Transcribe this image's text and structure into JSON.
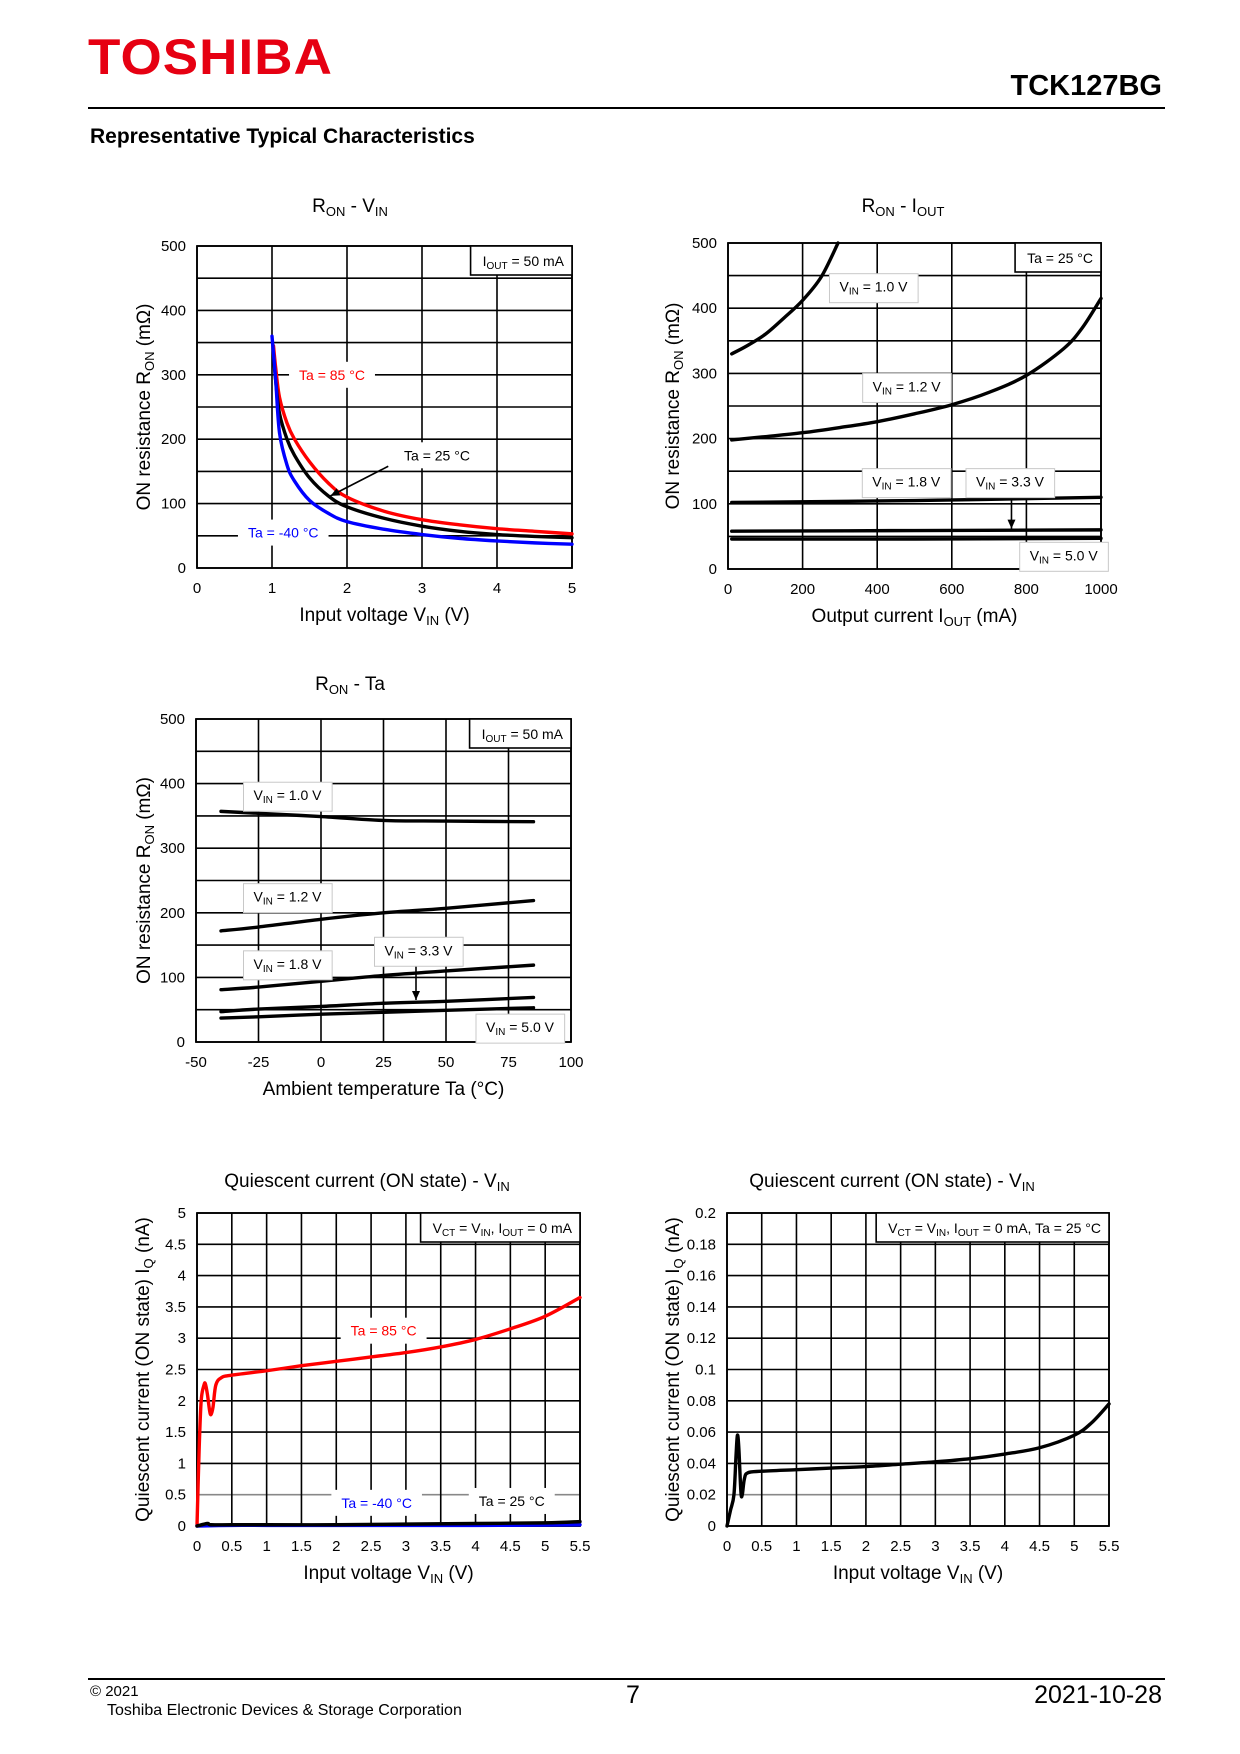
{
  "header": {
    "logo": "TOSHIBA",
    "part_number": "TCK127BG",
    "section_title": "Representative Typical Characteristics"
  },
  "footer": {
    "copyright": "© 2021",
    "company": "Toshiba Electronic Devices & Storage Corporation",
    "page": "7",
    "date": "2021-10-28"
  },
  "colors": {
    "logo": "#e60012",
    "ta85": "#ff0000",
    "ta25": "#000000",
    "ta_minus40": "#0000ff",
    "grid": "#000000"
  },
  "chart_data": [
    {
      "type": "line",
      "title": [
        {
          "t": "R"
        },
        {
          "t": "ON",
          "sub": true
        },
        {
          "t": " - V"
        },
        {
          "t": "IN",
          "sub": true
        }
      ],
      "xlabel": [
        {
          "t": "Input voltage V"
        },
        {
          "t": "IN",
          "sub": true
        },
        {
          "t": " (V)"
        }
      ],
      "ylabel": [
        {
          "t": "ON resistance R"
        },
        {
          "t": "ON",
          "sub": true
        },
        {
          "t": " (mΩ)"
        }
      ],
      "condition": [
        {
          "t": "I"
        },
        {
          "t": "OUT",
          "sub": true
        },
        {
          "t": " = 50 mA"
        }
      ],
      "xlim": [
        0,
        5
      ],
      "ylim": [
        0,
        500
      ],
      "xticks": [
        0,
        1,
        2,
        3,
        4,
        5
      ],
      "yticks": [
        0,
        100,
        200,
        300,
        400,
        500
      ],
      "grid": true,
      "series": [
        {
          "label": [
            {
              "t": "Ta = 85 °C"
            }
          ],
          "color": "#ff0000",
          "x": [
            1.02,
            1.05,
            1.1,
            1.2,
            1.3,
            1.5,
            1.75,
            2,
            2.5,
            3,
            3.5,
            4,
            4.5,
            5
          ],
          "y": [
            345,
            310,
            265,
            225,
            200,
            165,
            132,
            110,
            88,
            75,
            67,
            61,
            57,
            53
          ]
        },
        {
          "label": [
            {
              "t": "Ta = 25 °C"
            }
          ],
          "color": "#000000",
          "x": [
            1.02,
            1.05,
            1.1,
            1.2,
            1.3,
            1.5,
            1.75,
            2,
            2.5,
            3,
            3.5,
            4,
            4.5,
            5
          ],
          "y": [
            330,
            290,
            240,
            200,
            175,
            140,
            112,
            95,
            77,
            65,
            57,
            52,
            49,
            47
          ]
        },
        {
          "label": [
            {
              "t": "Ta = -40 °C"
            }
          ],
          "color": "#0000ff",
          "x": [
            1.0,
            1.05,
            1.1,
            1.2,
            1.3,
            1.5,
            1.75,
            2,
            2.5,
            3,
            3.5,
            4,
            4.5,
            5
          ],
          "y": [
            360,
            290,
            210,
            160,
            135,
            105,
            85,
            72,
            60,
            52,
            46,
            42,
            39,
            37
          ]
        }
      ]
    },
    {
      "type": "line",
      "title": [
        {
          "t": "R"
        },
        {
          "t": "ON",
          "sub": true
        },
        {
          "t": " - I"
        },
        {
          "t": "OUT",
          "sub": true
        }
      ],
      "xlabel": [
        {
          "t": "Output current I"
        },
        {
          "t": "OUT",
          "sub": true
        },
        {
          "t": " (mA)"
        }
      ],
      "ylabel": [
        {
          "t": "ON resistance R"
        },
        {
          "t": "ON",
          "sub": true
        },
        {
          "t": " (mΩ)"
        }
      ],
      "condition": [
        {
          "t": "Ta = 25 °C"
        }
      ],
      "xlim": [
        0,
        1000
      ],
      "ylim": [
        0,
        500
      ],
      "xticks": [
        0,
        200,
        400,
        600,
        800,
        1000
      ],
      "yticks": [
        0,
        100,
        200,
        300,
        400,
        500
      ],
      "grid": true,
      "series": [
        {
          "label": [
            {
              "t": "V"
            },
            {
              "t": "IN",
              "sub": true
            },
            {
              "t": " = 1.0 V"
            }
          ],
          "color": "#000000",
          "x": [
            10,
            50,
            100,
            150,
            200,
            250,
            295
          ],
          "y": [
            330,
            342,
            360,
            385,
            412,
            448,
            500
          ]
        },
        {
          "label": [
            {
              "t": "V"
            },
            {
              "t": "IN",
              "sub": true
            },
            {
              "t": " = 1.2 V"
            }
          ],
          "color": "#000000",
          "x": [
            10,
            100,
            200,
            300,
            400,
            500,
            600,
            700,
            800,
            900,
            950,
            1000
          ],
          "y": [
            198,
            203,
            209,
            217,
            226,
            238,
            252,
            271,
            297,
            338,
            370,
            415
          ]
        },
        {
          "label": [
            {
              "t": "V"
            },
            {
              "t": "IN",
              "sub": true
            },
            {
              "t": " = 1.8 V"
            }
          ],
          "color": "#000000",
          "x": [
            10,
            500,
            1000
          ],
          "y": [
            102,
            105,
            110
          ]
        },
        {
          "label": [
            {
              "t": "V"
            },
            {
              "t": "IN",
              "sub": true
            },
            {
              "t": " = 3.3 V"
            }
          ],
          "color": "#000000",
          "x": [
            10,
            500,
            1000
          ],
          "y": [
            58,
            59,
            60
          ]
        },
        {
          "label": [
            {
              "t": "V"
            },
            {
              "t": "IN",
              "sub": true
            },
            {
              "t": " = 5.0 V"
            }
          ],
          "color": "#000000",
          "x": [
            10,
            500,
            1000
          ],
          "y": [
            46,
            46,
            47
          ]
        }
      ]
    },
    {
      "type": "line",
      "title": [
        {
          "t": "R"
        },
        {
          "t": "ON",
          "sub": true
        },
        {
          "t": " - Ta"
        }
      ],
      "xlabel": [
        {
          "t": "Ambient temperature Ta (°C)"
        }
      ],
      "ylabel": [
        {
          "t": "ON resistance R"
        },
        {
          "t": "ON",
          "sub": true
        },
        {
          "t": " (mΩ)"
        }
      ],
      "condition": [
        {
          "t": "I"
        },
        {
          "t": "OUT",
          "sub": true
        },
        {
          "t": " = 50 mA"
        }
      ],
      "xlim": [
        -50,
        100
      ],
      "ylim": [
        0,
        500
      ],
      "xticks": [
        -50,
        -25,
        0,
        25,
        50,
        75,
        100
      ],
      "yticks": [
        0,
        100,
        200,
        300,
        400,
        500
      ],
      "grid": true,
      "series": [
        {
          "label": [
            {
              "t": "V"
            },
            {
              "t": "IN",
              "sub": true
            },
            {
              "t": " = 1.0 V"
            }
          ],
          "color": "#000000",
          "x": [
            -40,
            -25,
            0,
            25,
            50,
            85
          ],
          "y": [
            357,
            354,
            349,
            343,
            342,
            341
          ]
        },
        {
          "label": [
            {
              "t": "V"
            },
            {
              "t": "IN",
              "sub": true
            },
            {
              "t": " = 1.2 V"
            }
          ],
          "color": "#000000",
          "x": [
            -40,
            -25,
            0,
            25,
            50,
            85
          ],
          "y": [
            172,
            178,
            190,
            200,
            207,
            219
          ]
        },
        {
          "label": [
            {
              "t": "V"
            },
            {
              "t": "IN",
              "sub": true
            },
            {
              "t": " = 1.8 V"
            }
          ],
          "color": "#000000",
          "x": [
            -40,
            -25,
            0,
            25,
            50,
            85
          ],
          "y": [
            81,
            85,
            94,
            103,
            110,
            119
          ]
        },
        {
          "label": [
            {
              "t": "V"
            },
            {
              "t": "IN",
              "sub": true
            },
            {
              "t": " = 3.3 V"
            }
          ],
          "color": "#000000",
          "x": [
            -40,
            -25,
            0,
            25,
            50,
            85
          ],
          "y": [
            47,
            51,
            55,
            60,
            63,
            69
          ]
        },
        {
          "label": [
            {
              "t": "V"
            },
            {
              "t": "IN",
              "sub": true
            },
            {
              "t": " = 5.0 V"
            }
          ],
          "color": "#000000",
          "x": [
            -40,
            -25,
            0,
            25,
            50,
            85
          ],
          "y": [
            37,
            39,
            43,
            46,
            49,
            53
          ]
        }
      ]
    },
    {
      "type": "line",
      "title": [
        {
          "t": "Quiescent current (ON state) - V"
        },
        {
          "t": "IN",
          "sub": true
        }
      ],
      "xlabel": [
        {
          "t": "Input voltage V"
        },
        {
          "t": "IN",
          "sub": true
        },
        {
          "t": " (V)"
        }
      ],
      "ylabel": [
        {
          "t": "Quiescent current (ON state) I"
        },
        {
          "t": "Q",
          "sub": true
        },
        {
          "t": " (nA)"
        }
      ],
      "condition": [
        {
          "t": "V"
        },
        {
          "t": "CT",
          "sub": true
        },
        {
          "t": " = V"
        },
        {
          "t": "IN",
          "sub": true
        },
        {
          "t": ", I"
        },
        {
          "t": "OUT",
          "sub": true
        },
        {
          "t": " = 0 mA"
        }
      ],
      "xlim": [
        0,
        5.5
      ],
      "ylim": [
        0,
        5
      ],
      "xticks": [
        0,
        0.5,
        1,
        1.5,
        2,
        2.5,
        3,
        3.5,
        4,
        4.5,
        5,
        5.5
      ],
      "yticks": [
        0,
        0.5,
        1,
        1.5,
        2,
        2.5,
        3,
        3.5,
        4,
        4.5,
        5
      ],
      "grid": true,
      "series": [
        {
          "label": [
            {
              "t": "Ta = 85 °C"
            }
          ],
          "color": "#ff0000",
          "x": [
            0,
            0.03,
            0.06,
            0.1,
            0.12,
            0.15,
            0.18,
            0.2,
            0.23,
            0.27,
            0.35,
            0.5,
            1,
            1.5,
            2,
            2.5,
            3,
            3.5,
            4,
            4.5,
            5,
            5.5
          ],
          "y": [
            0,
            1.2,
            2.0,
            2.25,
            2.27,
            2.1,
            1.85,
            1.78,
            1.9,
            2.25,
            2.37,
            2.41,
            2.48,
            2.56,
            2.63,
            2.7,
            2.77,
            2.86,
            2.98,
            3.15,
            3.35,
            3.65
          ]
        },
        {
          "label": [
            {
              "t": "Ta = -40 °C"
            }
          ],
          "color": "#0000ff",
          "x": [
            0,
            0.5,
            1,
            2,
            3,
            4,
            5,
            5.5
          ],
          "y": [
            0,
            0.01,
            0.01,
            0.01,
            0.01,
            0.01,
            0.015,
            0.02
          ]
        },
        {
          "label": [
            {
              "t": "Ta = 25 °C"
            }
          ],
          "color": "#000000",
          "x": [
            0,
            0.15,
            0.2,
            0.5,
            1,
            2,
            3,
            4,
            5,
            5.5
          ],
          "y": [
            0,
            0.04,
            0.02,
            0.02,
            0.02,
            0.02,
            0.03,
            0.04,
            0.05,
            0.07
          ]
        }
      ]
    },
    {
      "type": "line",
      "title": [
        {
          "t": "Quiescent current (ON state) - V"
        },
        {
          "t": "IN",
          "sub": true
        }
      ],
      "xlabel": [
        {
          "t": "Input voltage V"
        },
        {
          "t": "IN",
          "sub": true
        },
        {
          "t": " (V)"
        }
      ],
      "ylabel": [
        {
          "t": "Quiescent current (ON state) I"
        },
        {
          "t": "Q",
          "sub": true
        },
        {
          "t": " (nA)"
        }
      ],
      "condition": [
        {
          "t": "V"
        },
        {
          "t": "CT",
          "sub": true
        },
        {
          "t": " = V"
        },
        {
          "t": "IN",
          "sub": true
        },
        {
          "t": ", I"
        },
        {
          "t": "OUT",
          "sub": true
        },
        {
          "t": " = 0 mA, Ta = 25 °C"
        }
      ],
      "xlim": [
        0,
        5.5
      ],
      "ylim": [
        0,
        0.2
      ],
      "xticks": [
        0,
        0.5,
        1,
        1.5,
        2,
        2.5,
        3,
        3.5,
        4,
        4.5,
        5,
        5.5
      ],
      "yticks": [
        0,
        0.02,
        0.04,
        0.06,
        0.08,
        0.1,
        0.12,
        0.14,
        0.16,
        0.18,
        0.2
      ],
      "grid": true,
      "series": [
        {
          "color": "#000000",
          "x": [
            0,
            0.05,
            0.1,
            0.13,
            0.15,
            0.17,
            0.2,
            0.22,
            0.25,
            0.3,
            0.5,
            1,
            1.5,
            2,
            2.5,
            3,
            3.5,
            4,
            4.5,
            5,
            5.25,
            5.5
          ],
          "y": [
            0,
            0.01,
            0.02,
            0.045,
            0.058,
            0.05,
            0.022,
            0.02,
            0.03,
            0.034,
            0.035,
            0.036,
            0.037,
            0.038,
            0.0395,
            0.041,
            0.043,
            0.046,
            0.05,
            0.058,
            0.066,
            0.078
          ]
        }
      ]
    }
  ]
}
